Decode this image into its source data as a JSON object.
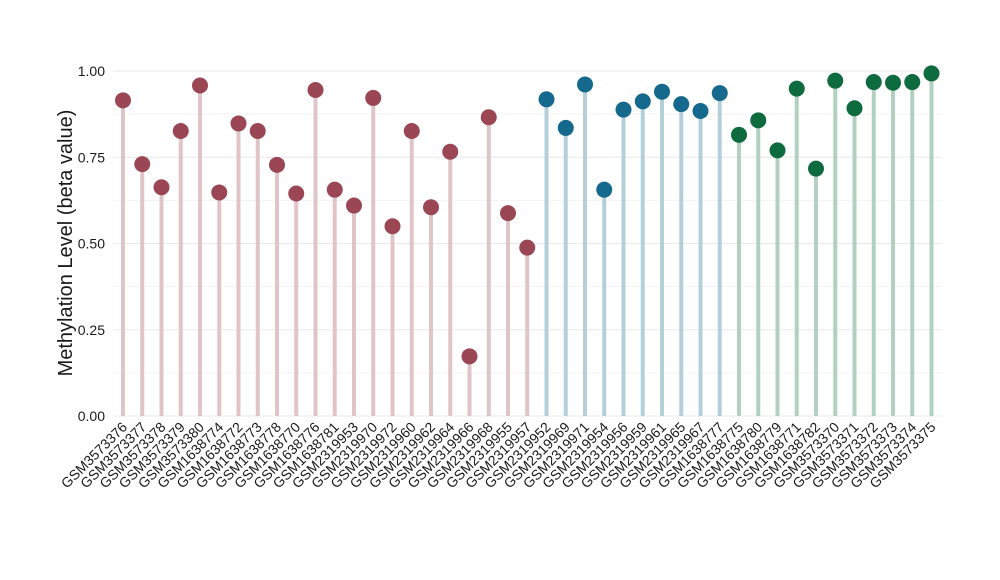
{
  "chart_data": {
    "type": "lollipop",
    "title": "",
    "xlabel": "",
    "ylabel": "Methylation Level (beta value)",
    "ylim": [
      0,
      1
    ],
    "yticks": [
      0.0,
      0.25,
      0.5,
      0.75,
      1.0
    ],
    "ytick_labels": [
      "0.00",
      "0.25",
      "0.50",
      "0.75",
      "1.00"
    ],
    "grid": true,
    "legend": "none",
    "group_colors": [
      "#9b4654",
      "#14698c",
      "#0e6b3f"
    ],
    "categories": [
      "GSM3573376",
      "GSM3573377",
      "GSM3573378",
      "GSM3573379",
      "GSM3573380",
      "GSM1638774",
      "GSM1638772",
      "GSM1638773",
      "GSM1638778",
      "GSM1638770",
      "GSM1638776",
      "GSM1638781",
      "GSM2319953",
      "GSM2319970",
      "GSM2319972",
      "GSM2319960",
      "GSM2319962",
      "GSM2319964",
      "GSM2319966",
      "GSM2319968",
      "GSM2319955",
      "GSM2319957",
      "GSM2319952",
      "GSM2319969",
      "GSM2319971",
      "GSM2319954",
      "GSM2319956",
      "GSM2319959",
      "GSM2319961",
      "GSM2319965",
      "GSM2319967",
      "GSM1638777",
      "GSM1638775",
      "GSM1638780",
      "GSM1638779",
      "GSM1638771",
      "GSM1638782",
      "GSM3573370",
      "GSM3573371",
      "GSM3573372",
      "GSM3573373",
      "GSM3573374",
      "GSM3573375"
    ],
    "values": [
      0.915,
      0.73,
      0.663,
      0.826,
      0.958,
      0.648,
      0.848,
      0.826,
      0.728,
      0.645,
      0.945,
      0.656,
      0.61,
      0.922,
      0.55,
      0.826,
      0.605,
      0.766,
      0.173,
      0.866,
      0.588,
      0.488,
      0.918,
      0.835,
      0.961,
      0.656,
      0.888,
      0.912,
      0.94,
      0.904,
      0.884,
      0.936,
      0.815,
      0.857,
      0.77,
      0.949,
      0.717,
      0.972,
      0.892,
      0.968,
      0.966,
      0.968,
      0.993
    ],
    "groups": [
      0,
      0,
      0,
      0,
      0,
      0,
      0,
      0,
      0,
      0,
      0,
      0,
      0,
      0,
      0,
      0,
      0,
      0,
      0,
      0,
      0,
      0,
      1,
      1,
      1,
      1,
      1,
      1,
      1,
      1,
      1,
      1,
      2,
      2,
      2,
      2,
      2,
      2,
      2,
      2,
      2,
      2,
      2
    ]
  }
}
